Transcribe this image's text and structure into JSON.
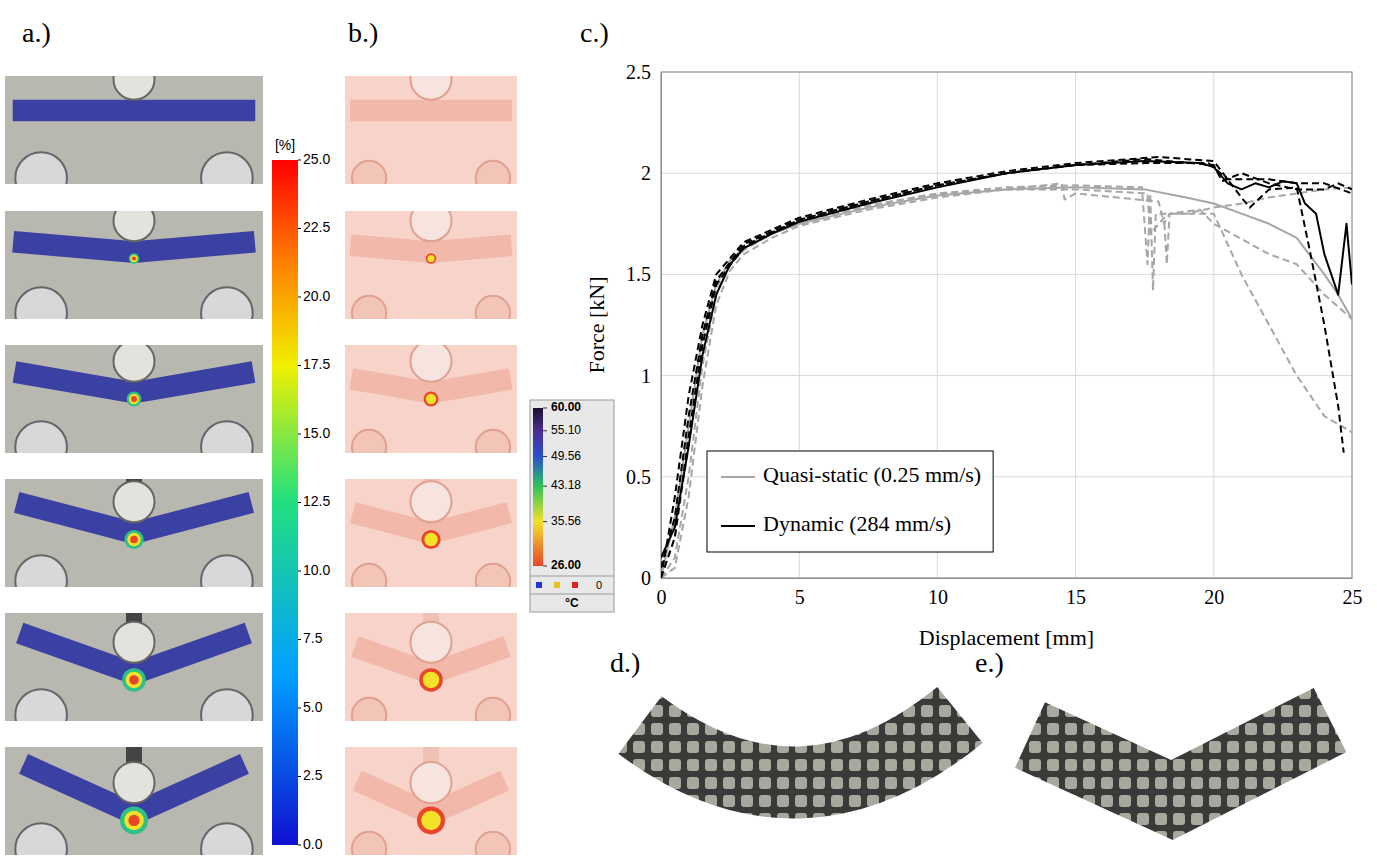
{
  "panels": {
    "a": {
      "label": "a.)",
      "colorbar": {
        "title": "[%]",
        "range": [
          0,
          25
        ],
        "ticks": [
          {
            "value": 0,
            "label": "0.0"
          },
          2.5,
          {
            "value": 5,
            "label": "5.0"
          },
          7.5,
          {
            "value": 10,
            "label": "10.0"
          },
          12.5,
          {
            "value": 15,
            "label": "15.0"
          },
          17.5,
          {
            "value": 20,
            "label": "20.0"
          },
          22.5,
          {
            "value": 25,
            "label": "25.0"
          }
        ]
      }
    },
    "b": {
      "label": "b.)",
      "colorbar": {
        "title": "°C",
        "range": [
          26,
          60
        ],
        "ticks": [
          {
            "value": 60,
            "label": "60.00"
          },
          {
            "value": 55.1,
            "label": "55.10"
          },
          {
            "value": 49.56,
            "label": "49.56"
          },
          {
            "value": 43.18,
            "label": "43.18"
          },
          {
            "value": 35.56,
            "label": "35.56"
          },
          {
            "value": 26,
            "label": "26.00"
          }
        ],
        "marker_count": 0
      }
    },
    "c": {
      "label": "c.)"
    },
    "d": {
      "label": "d.)"
    },
    "e": {
      "label": "e.)"
    }
  },
  "chart_data": {
    "type": "line",
    "x_label": "Displacement [mm]",
    "y_label": "Force [kN]",
    "xlim": [
      0,
      25
    ],
    "ylim": [
      0,
      2.5
    ],
    "xticks": [
      0,
      5,
      10,
      15,
      20,
      25
    ],
    "yticks": [
      0,
      0.5,
      1,
      1.5,
      2,
      2.5
    ],
    "grid": true,
    "legend": "lower left",
    "series": [
      {
        "name": "Quasi-static (0.25 mm/s)",
        "color": "#a6a6a6",
        "line_style": "solid",
        "x": [
          0,
          0.5,
          1,
          1.5,
          2,
          2.5,
          3,
          4,
          5,
          7.5,
          10,
          12.5,
          15,
          17.5,
          19,
          20,
          21,
          22,
          23,
          24,
          24.5,
          25
        ],
        "values": [
          0,
          0.3,
          0.75,
          1.2,
          1.45,
          1.57,
          1.63,
          1.7,
          1.75,
          1.83,
          1.89,
          1.92,
          1.93,
          1.92,
          1.88,
          1.85,
          1.8,
          1.75,
          1.68,
          1.5,
          1.4,
          1.28
        ]
      },
      {
        "color": "#a6a6a6",
        "line_style": "dashed",
        "x": [
          0,
          0.5,
          1,
          1.5,
          2,
          2.5,
          3,
          4,
          5,
          7.5,
          10,
          12.5,
          15,
          17.4,
          17.6,
          17.7,
          17.8,
          17.9,
          19,
          20,
          21,
          22,
          23,
          24,
          25
        ],
        "values": [
          0,
          0.1,
          0.5,
          1.05,
          1.4,
          1.55,
          1.62,
          1.7,
          1.75,
          1.84,
          1.9,
          1.93,
          1.94,
          1.93,
          1.55,
          1.9,
          1.42,
          1.8,
          1.8,
          1.83,
          1.85,
          1.88,
          1.9,
          1.92,
          1.93
        ]
      },
      {
        "color": "#a6a6a6",
        "line_style": "dashed",
        "x": [
          0,
          0.5,
          1,
          1.5,
          2,
          2.5,
          3,
          4,
          5,
          7.5,
          10,
          12.5,
          14.5,
          14.6,
          15,
          18,
          18.2,
          18.4,
          20,
          21,
          22,
          23,
          24,
          25
        ],
        "values": [
          0,
          0.05,
          0.4,
          0.95,
          1.35,
          1.52,
          1.6,
          1.68,
          1.74,
          1.82,
          1.88,
          1.92,
          1.95,
          1.87,
          1.9,
          1.86,
          1.75,
          1.8,
          1.8,
          1.5,
          1.25,
          1.0,
          0.8,
          0.72
        ]
      },
      {
        "color": "#a6a6a6",
        "line_style": "dashed",
        "x": [
          0,
          0.5,
          1,
          1.5,
          2,
          2.5,
          3,
          4,
          5,
          7.5,
          10,
          12.5,
          15,
          17.6,
          17.7,
          18.2,
          18.3,
          18.4,
          19.5,
          20,
          22,
          23,
          24,
          25
        ],
        "values": [
          0,
          0.2,
          0.65,
          1.15,
          1.43,
          1.56,
          1.63,
          1.71,
          1.76,
          1.84,
          1.9,
          1.92,
          1.92,
          1.9,
          1.7,
          1.78,
          1.55,
          1.8,
          1.82,
          1.75,
          1.6,
          1.55,
          1.4,
          1.28
        ]
      },
      {
        "name": "Dynamic (284 mm/s)",
        "color": "#000000",
        "line_style": "solid",
        "x": [
          0,
          0.5,
          1,
          1.5,
          2,
          2.5,
          3,
          4,
          5,
          7.5,
          10,
          12.5,
          15,
          17.5,
          19.5,
          20,
          20.5,
          21,
          21.5,
          22,
          22.5,
          23,
          23.3,
          23.7,
          24,
          24.5,
          24.8,
          25
        ],
        "values": [
          0.1,
          0.25,
          0.65,
          1.1,
          1.4,
          1.55,
          1.63,
          1.7,
          1.76,
          1.85,
          1.93,
          2.0,
          2.04,
          2.06,
          2.05,
          2.03,
          1.95,
          1.92,
          1.95,
          1.93,
          1.96,
          1.95,
          1.85,
          1.8,
          1.6,
          1.4,
          1.75,
          1.45
        ]
      },
      {
        "color": "#000000",
        "line_style": "dashed",
        "x": [
          0,
          0.5,
          1,
          1.5,
          2,
          3,
          5,
          7.5,
          10,
          12.5,
          15,
          18,
          20,
          21,
          21.3,
          22,
          23,
          23.5,
          24,
          24.5,
          24.7
        ],
        "values": [
          0,
          0.4,
          0.9,
          1.25,
          1.5,
          1.66,
          1.78,
          1.87,
          1.95,
          2.01,
          2.05,
          2.08,
          2.06,
          1.88,
          1.83,
          1.92,
          1.93,
          1.6,
          1.25,
          0.85,
          0.62
        ]
      },
      {
        "color": "#000000",
        "line_style": "dashed",
        "x": [
          0,
          0.5,
          1,
          1.5,
          2,
          3,
          5,
          7.5,
          10,
          12.5,
          15,
          17.5,
          19.8,
          20.5,
          21,
          22,
          23,
          24,
          25
        ],
        "values": [
          0.05,
          0.3,
          0.8,
          1.2,
          1.47,
          1.65,
          1.77,
          1.86,
          1.94,
          2.0,
          2.04,
          2.05,
          2.05,
          1.97,
          1.97,
          1.97,
          1.95,
          1.95,
          1.9
        ]
      },
      {
        "color": "#000000",
        "line_style": "dashed",
        "x": [
          0,
          0.5,
          1,
          1.5,
          2,
          3,
          5,
          7.5,
          10,
          12.5,
          15,
          17.5,
          20,
          20.3,
          21,
          22,
          23,
          24,
          24.5,
          25
        ],
        "values": [
          0,
          0.2,
          0.7,
          1.15,
          1.45,
          1.64,
          1.77,
          1.86,
          1.94,
          2.0,
          2.04,
          2.07,
          2.04,
          1.96,
          2.0,
          1.95,
          1.92,
          1.92,
          1.95,
          1.92
        ]
      }
    ]
  }
}
